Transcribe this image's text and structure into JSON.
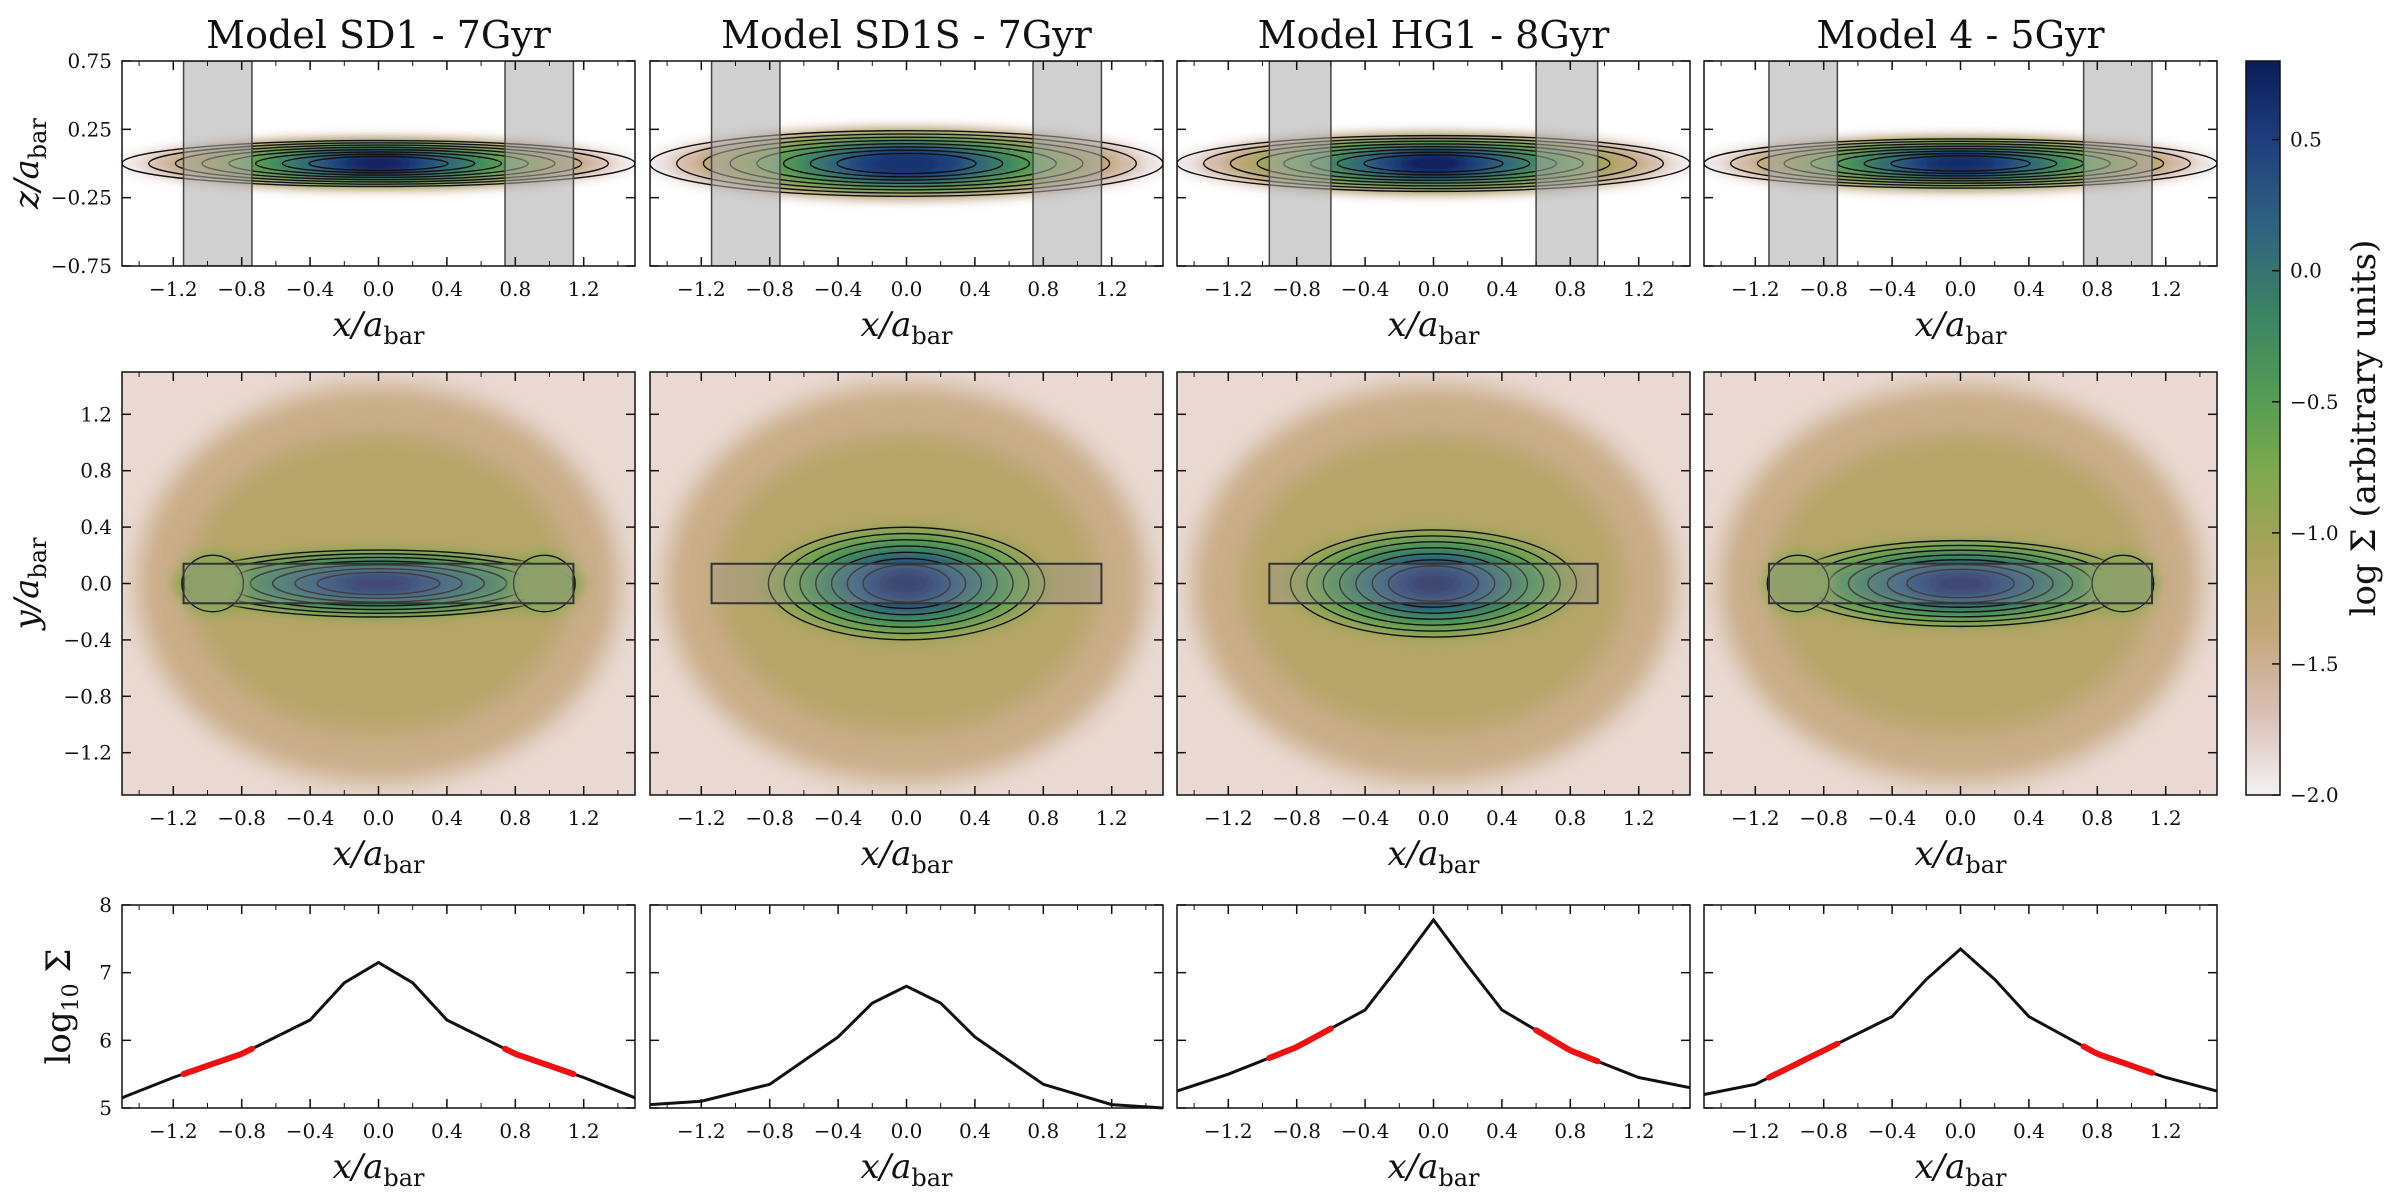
{
  "colorbar": {
    "label": "log Σ (arbitrary units)",
    "range": [
      -2.0,
      0.8
    ],
    "ticks": [
      "0.5",
      "0.0",
      "−0.5",
      "−1.0",
      "−1.5",
      "−2.0"
    ],
    "tick_values": [
      0.5,
      0.0,
      -0.5,
      -1.0,
      -1.5,
      -2.0
    ],
    "colors": [
      "#f4f1f2",
      "#d9bfb6",
      "#c4a77a",
      "#a9a35a",
      "#7ba94e",
      "#4f9a55",
      "#3a8066",
      "#2f6280",
      "#1f3f7e",
      "#0a1c5a"
    ]
  },
  "axis_labels": {
    "x": "x/a",
    "x_sub": "bar",
    "z": "z/a",
    "y": "y/a",
    "sub": "bar",
    "logsigma": "log",
    "logsigma_sub": "10",
    "logsigma_sym": "Σ"
  },
  "x_ticks": [
    "−1.2",
    "−0.8",
    "−0.4",
    "0.0",
    "0.4",
    "0.8",
    "1.2"
  ],
  "x_tick_values": [
    -1.2,
    -0.8,
    -0.4,
    0.0,
    0.4,
    0.8,
    1.2
  ],
  "row_ticks": {
    "top": {
      "labels": [
        "0.75",
        "0.25",
        "−0.25",
        "−0.75"
      ],
      "values": [
        0.75,
        0.25,
        -0.25,
        -0.75
      ]
    },
    "mid": {
      "labels": [
        "1.2",
        "0.8",
        "0.4",
        "0.0",
        "−0.4",
        "−0.8",
        "−1.2"
      ],
      "values": [
        1.2,
        0.8,
        0.4,
        0.0,
        -0.4,
        -0.8,
        -1.2
      ]
    },
    "bot": {
      "labels": [
        "8",
        "7",
        "6",
        "5"
      ],
      "values": [
        8,
        7,
        6,
        5
      ]
    }
  },
  "chart_data": [
    {
      "title": "Model SD1 - 7Gyr",
      "type": "heatmap",
      "xlim": [
        -1.5,
        1.5
      ],
      "edge_on": {
        "ylim": [
          -0.75,
          0.75
        ],
        "disk_halfthickness": 0.14,
        "peak": 0.8
      },
      "shaded_x_ranges": [
        [
          -1.14,
          -0.74
        ],
        [
          0.74,
          1.14
        ]
      ],
      "face_on": {
        "ylim": [
          -1.5,
          1.5
        ],
        "bar_length": 1.2,
        "bar_halfwidth": 0.25,
        "ears": true,
        "box_x": [
          -1.14,
          1.14
        ],
        "box_y": [
          -0.14,
          0.14
        ]
      },
      "profile": {
        "type": "line",
        "ylim": [
          5,
          8
        ],
        "x": [
          -1.5,
          -1.2,
          -0.8,
          -0.4,
          -0.2,
          0.0,
          0.2,
          0.4,
          0.8,
          1.2,
          1.5
        ],
        "y": [
          5.15,
          5.45,
          5.8,
          6.3,
          6.85,
          7.15,
          6.85,
          6.3,
          5.8,
          5.45,
          5.15
        ],
        "highlight_x_ranges": [
          [
            -1.14,
            -0.74
          ],
          [
            0.74,
            1.14
          ]
        ]
      }
    },
    {
      "title": "Model SD1S - 7Gyr",
      "type": "heatmap",
      "xlim": [
        -1.5,
        1.5
      ],
      "edge_on": {
        "ylim": [
          -0.75,
          0.75
        ],
        "disk_halfthickness": 0.2,
        "peak": 0.6
      },
      "shaded_x_ranges": [
        [
          -1.14,
          -0.74
        ],
        [
          0.74,
          1.14
        ]
      ],
      "face_on": {
        "ylim": [
          -1.5,
          1.5
        ],
        "bar_length": 0.85,
        "bar_halfwidth": 0.42,
        "ears": false,
        "box_x": [
          -1.14,
          1.14
        ],
        "box_y": [
          -0.14,
          0.14
        ]
      },
      "profile": {
        "type": "line",
        "ylim": [
          5,
          8
        ],
        "x": [
          -1.5,
          -1.2,
          -0.8,
          -0.4,
          -0.2,
          0.0,
          0.2,
          0.4,
          0.8,
          1.2,
          1.5
        ],
        "y": [
          5.05,
          5.1,
          5.35,
          6.05,
          6.55,
          6.8,
          6.55,
          6.05,
          5.35,
          5.05,
          5.0
        ],
        "highlight_x_ranges": []
      }
    },
    {
      "title": "Model HG1 - 8Gyr",
      "type": "heatmap",
      "xlim": [
        -1.5,
        1.5
      ],
      "edge_on": {
        "ylim": [
          -0.75,
          0.75
        ],
        "disk_halfthickness": 0.17,
        "peak": 0.8
      },
      "shaded_x_ranges": [
        [
          -0.96,
          -0.6
        ],
        [
          0.6,
          0.96
        ]
      ],
      "face_on": {
        "ylim": [
          -1.5,
          1.5
        ],
        "bar_length": 0.88,
        "bar_halfwidth": 0.4,
        "ears": false,
        "box_x": [
          -0.96,
          0.96
        ],
        "box_y": [
          -0.14,
          0.14
        ]
      },
      "profile": {
        "type": "line",
        "ylim": [
          5,
          8
        ],
        "x": [
          -1.5,
          -1.2,
          -0.8,
          -0.4,
          -0.2,
          0.0,
          0.2,
          0.4,
          0.8,
          1.2,
          1.5
        ],
        "y": [
          5.25,
          5.5,
          5.9,
          6.45,
          7.1,
          7.78,
          7.1,
          6.45,
          5.85,
          5.45,
          5.3
        ],
        "highlight_x_ranges": [
          [
            -0.96,
            -0.6
          ],
          [
            0.6,
            0.96
          ]
        ]
      }
    },
    {
      "title": "Model 4 - 5Gyr",
      "type": "heatmap",
      "xlim": [
        -1.5,
        1.5
      ],
      "edge_on": {
        "ylim": [
          -0.75,
          0.75
        ],
        "disk_halfthickness": 0.15,
        "peak": 0.7
      },
      "shaded_x_ranges": [
        [
          -1.12,
          -0.72
        ],
        [
          0.72,
          1.12
        ]
      ],
      "face_on": {
        "ylim": [
          -1.5,
          1.5
        ],
        "bar_length": 1.05,
        "bar_halfwidth": 0.32,
        "ears": true,
        "box_x": [
          -1.12,
          1.12
        ],
        "box_y": [
          -0.14,
          0.14
        ]
      },
      "profile": {
        "type": "line",
        "ylim": [
          5,
          8
        ],
        "x": [
          -1.5,
          -1.2,
          -0.8,
          -0.4,
          -0.2,
          0.0,
          0.2,
          0.4,
          0.8,
          1.2,
          1.5
        ],
        "y": [
          5.2,
          5.35,
          5.85,
          6.35,
          6.9,
          7.35,
          6.9,
          6.35,
          5.8,
          5.45,
          5.25
        ],
        "highlight_x_ranges": [
          [
            -1.12,
            -0.72
          ],
          [
            0.72,
            1.12
          ]
        ]
      }
    }
  ]
}
